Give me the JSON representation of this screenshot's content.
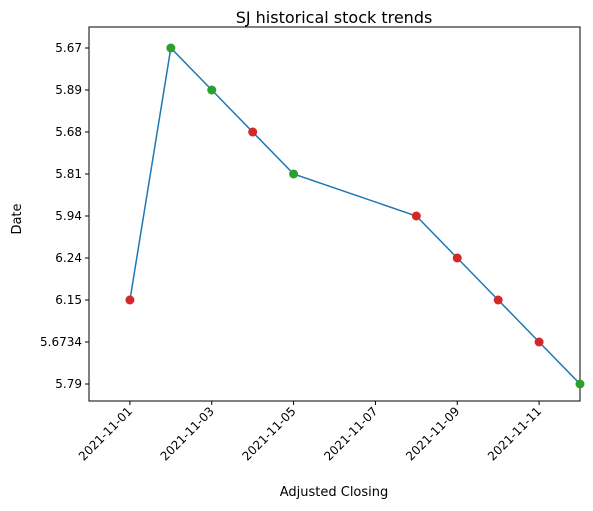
{
  "chart_data": {
    "type": "line",
    "title": "SJ historical stock trends",
    "xlabel": "Adjusted Closing",
    "ylabel": "Date",
    "x_ticks": [
      "2021-11-01",
      "2021-11-03",
      "2021-11-05",
      "2021-11-07",
      "2021-11-09",
      "2021-11-11"
    ],
    "y_categories": [
      "5.67",
      "5.89",
      "5.68",
      "5.81",
      "5.94",
      "6.24",
      "6.15",
      "5.6734",
      "5.79"
    ],
    "points": [
      {
        "x": "2021-11-01",
        "y": "6.15",
        "marker": "red"
      },
      {
        "x": "2021-11-02",
        "y": "5.67",
        "marker": "green"
      },
      {
        "x": "2021-11-03",
        "y": "5.89",
        "marker": "green"
      },
      {
        "x": "2021-11-04",
        "y": "5.68",
        "marker": "red"
      },
      {
        "x": "2021-11-05",
        "y": "5.81",
        "marker": "green"
      },
      {
        "x": "2021-11-08",
        "y": "5.94",
        "marker": "red"
      },
      {
        "x": "2021-11-09",
        "y": "6.24",
        "marker": "red"
      },
      {
        "x": "2021-11-10",
        "y": "6.15",
        "marker": "red"
      },
      {
        "x": "2021-11-11",
        "y": "5.6734",
        "marker": "red"
      },
      {
        "x": "2021-11-12",
        "y": "5.79",
        "marker": "green"
      }
    ],
    "xlim": [
      "2021-10-31",
      "2021-11-12"
    ],
    "grid": false,
    "legend": "none",
    "colors": {
      "line": "#1f77b4",
      "red": "#d62728",
      "green": "#2ca02c"
    }
  }
}
